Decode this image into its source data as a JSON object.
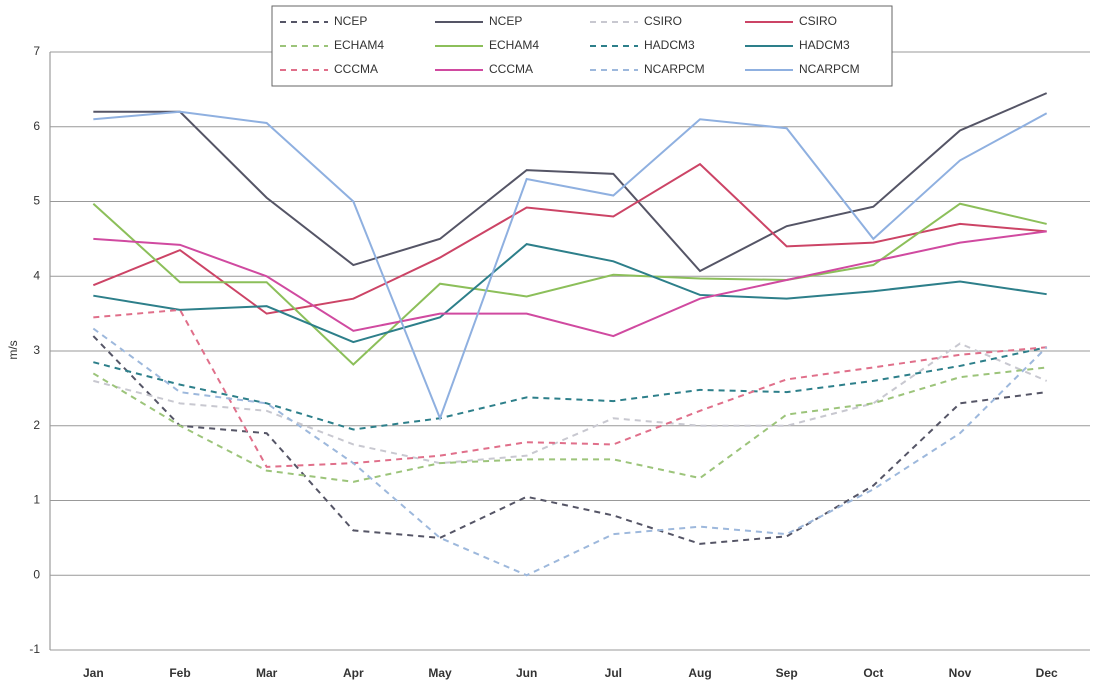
{
  "chart_data": {
    "type": "line",
    "y_label": "m/s",
    "categories": [
      "Jan",
      "Feb",
      "Mar",
      "Apr",
      "May",
      "Jun",
      "Jul",
      "Aug",
      "Sep",
      "Oct",
      "Nov",
      "Dec"
    ],
    "ylim": [
      -1,
      7
    ],
    "yticks": [
      -1,
      0,
      1,
      2,
      3,
      4,
      5,
      6,
      7
    ],
    "grid": true,
    "legend": "top",
    "series": [
      {
        "name": "NCEP",
        "color": "#555566",
        "style": "dashed",
        "values": [
          3.2,
          2.0,
          1.9,
          0.6,
          0.5,
          1.05,
          0.8,
          0.42,
          0.52,
          1.2,
          2.3,
          2.45
        ]
      },
      {
        "name": "NCEP",
        "color": "#555566",
        "style": "solid",
        "values": [
          6.2,
          6.2,
          5.05,
          4.15,
          4.5,
          5.42,
          5.37,
          4.07,
          4.67,
          4.93,
          5.95,
          6.45
        ]
      },
      {
        "name": "CSIRO",
        "color": "#c8c8d0",
        "style": "dashed",
        "values": [
          2.6,
          2.3,
          2.2,
          1.75,
          1.5,
          1.6,
          2.1,
          2.0,
          2.0,
          2.3,
          3.1,
          2.6
        ]
      },
      {
        "name": "CSIRO",
        "color": "#cc4466",
        "style": "solid",
        "values": [
          3.88,
          4.35,
          3.5,
          3.7,
          4.25,
          4.92,
          4.8,
          5.5,
          4.4,
          4.45,
          4.7,
          4.6
        ]
      },
      {
        "name": "ECHAM4",
        "color": "#9cc47a",
        "style": "dashed",
        "values": [
          2.7,
          2.0,
          1.4,
          1.25,
          1.5,
          1.55,
          1.55,
          1.3,
          2.15,
          2.3,
          2.65,
          2.78
        ]
      },
      {
        "name": "ECHAM4",
        "color": "#8cbf5a",
        "style": "solid",
        "values": [
          4.97,
          3.92,
          3.92,
          2.82,
          3.9,
          3.73,
          4.02,
          3.97,
          3.95,
          4.15,
          4.97,
          4.7
        ]
      },
      {
        "name": "HADCM3",
        "color": "#2d7f8a",
        "style": "dashed",
        "values": [
          2.85,
          2.55,
          2.3,
          1.95,
          2.1,
          2.38,
          2.33,
          2.48,
          2.45,
          2.6,
          2.8,
          3.05
        ]
      },
      {
        "name": "HADCM3",
        "color": "#2d7f8a",
        "style": "solid",
        "values": [
          3.74,
          3.55,
          3.6,
          3.12,
          3.45,
          4.43,
          4.2,
          3.75,
          3.7,
          3.8,
          3.93,
          3.76
        ]
      },
      {
        "name": "CCCMA",
        "color": "#e06f8a",
        "style": "dashed",
        "values": [
          3.45,
          3.55,
          1.45,
          1.5,
          1.6,
          1.78,
          1.75,
          2.2,
          2.62,
          2.78,
          2.95,
          3.05
        ]
      },
      {
        "name": "CCCMA",
        "color": "#d04aa0",
        "style": "solid",
        "values": [
          4.5,
          4.42,
          4.0,
          3.27,
          3.5,
          3.5,
          3.2,
          3.7,
          3.95,
          4.2,
          4.45,
          4.6
        ]
      },
      {
        "name": "NCARPCM",
        "color": "#9db8dc",
        "style": "dashed",
        "values": [
          3.3,
          2.45,
          2.3,
          1.5,
          0.5,
          0.0,
          0.55,
          0.65,
          0.55,
          1.15,
          1.9,
          3.05
        ]
      },
      {
        "name": "NCARPCM",
        "color": "#8fb0e0",
        "style": "solid",
        "values": [
          6.1,
          6.2,
          6.05,
          5.0,
          2.1,
          5.3,
          5.08,
          6.1,
          5.98,
          4.5,
          5.55,
          6.18
        ]
      }
    ]
  }
}
